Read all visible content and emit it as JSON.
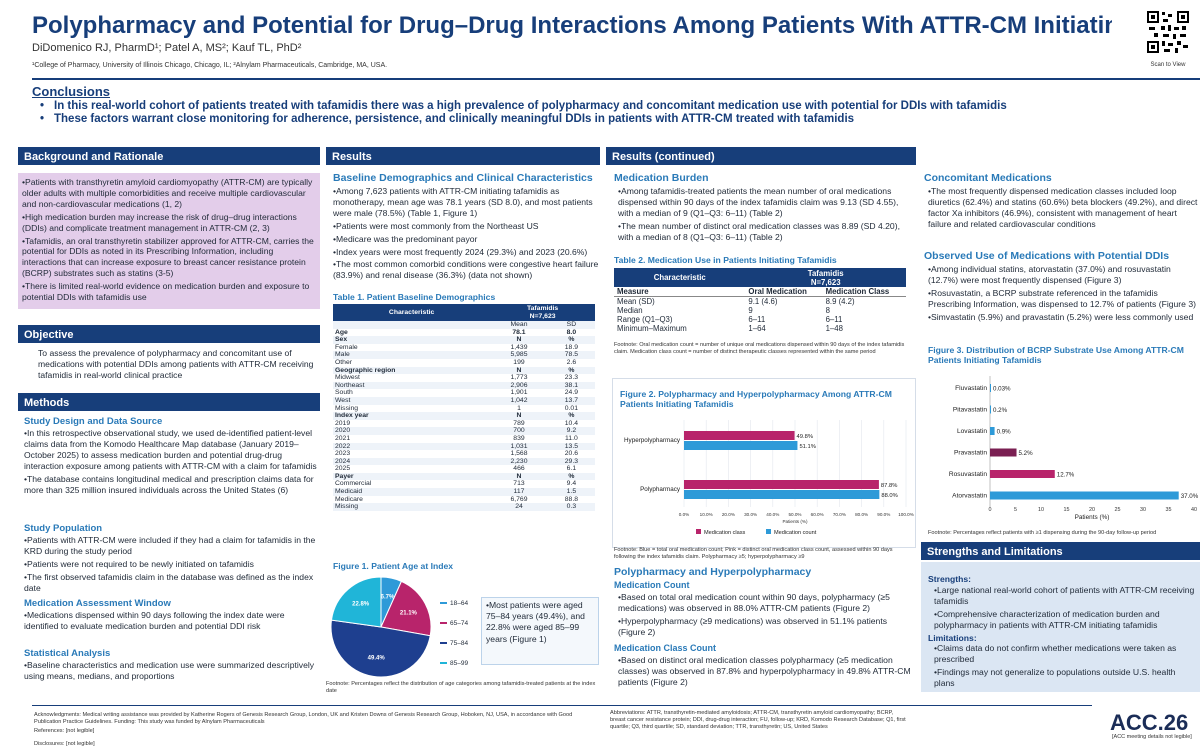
{
  "header": {
    "title": "Polypharmacy and Potential for Drug–Drug Interactions Among Patients With ATTR-CM Initiating Tafamidis",
    "authors": "DiDomenico RJ, PharmD¹; Patel A, MS²; Kauf TL, PhD²",
    "affiliations": "¹College of Pharmacy, University of Illinois Chicago, Chicago, IL; ²Alnylam Pharmaceuticals, Cambridge, MA, USA.",
    "qr_caption": "Scan to View"
  },
  "conclusions": {
    "title": "Conclusions",
    "items": [
      "In this real-world cohort of patients treated with tafamidis there was a high prevalence of polypharmacy and concomitant medication use with potential for DDIs with tafamidis",
      "These factors warrant close monitoring for adherence, persistence, and clinically meaningful DDIs in patients with ATTR-CM treated with tafamidis"
    ]
  },
  "background": {
    "title": "Background and Rationale",
    "items": [
      "•Patients with transthyretin amyloid cardiomyopathy (ATTR-CM) are typically older adults with multiple comorbidities and receive multiple cardiovascular and non-cardiovascular medications (1, 2)",
      "•High medication burden may increase the risk of drug–drug interactions (DDIs) and complicate treatment management in ATTR-CM (2, 3)",
      "•Tafamidis, an oral transthyretin stabilizer approved for ATTR-CM, carries the potential for DDIs as noted in its Prescribing Information, including interactions that can increase exposure to breast cancer resistance protein (BCRP) substrates such as statins (3-5)",
      "•There is limited real-world evidence on medication burden and exposure to potential DDIs with tafamidis use"
    ]
  },
  "objective": {
    "title": "Objective",
    "text": "To assess the prevalence of polypharmacy and concomitant use of medications with potential DDIs among patients with ATTR-CM receiving tafamidis in real-world clinical practice"
  },
  "methods": {
    "title": "Methods",
    "study_design_title": "Study Design and Data Source",
    "study_design": [
      "•In this retrospective observational study, we used de-identified patient-level claims data from the Komodo Healthcare Map database (January 2019–October 2025) to assess medication burden and potential drug-drug interaction exposure among patients with ATTR-CM with a claim for tafamidis",
      "•The database contains longitudinal medical and prescription claims data for more than 325 million insured individuals across the United States (6)"
    ],
    "population_title": "Study Population",
    "population": [
      "•Patients with ATTR-CM were included if they had a claim for tafamidis in the KRD during the study period",
      "•Patients were not required to be newly initiated on tafamidis",
      "•The first observed tafamidis claim in the database was defined as the index date"
    ],
    "window_title": "Medication Assessment Window",
    "window": [
      "•Medications dispensed within 90 days following the index date were identified to evaluate medication burden and potential DDI risk"
    ],
    "stats_title": "Statistical Analysis",
    "stats": [
      "•Baseline characteristics and medication use were summarized descriptively using means, medians, and proportions"
    ]
  },
  "results": {
    "title": "Results",
    "baseline_title": "Baseline Demographics and Clinical Characteristics",
    "baseline": [
      "•Among 7,623 patients with ATTR-CM initiating tafamidis as monotherapy, mean age was 78.1 years (SD 8.0), and most patients were male (78.5%) (Table 1, Figure 1)",
      "•Patients were most commonly from the Northeast US",
      "•Medicare was the predominant payor",
      "•Index years were most frequently 2024 (29.3%) and 2023 (20.6%)",
      "•The most common comorbid conditions were congestive heart failure (83.9%) and renal disease (36.3%) (data not shown)"
    ],
    "table1": {
      "caption": "Table 1. Patient Baseline Demographics",
      "col_char": "Characteristic",
      "col_group": "Tafamidis",
      "col_n": "N=7,623",
      "rows": [
        [
          "",
          "Mean",
          "SD",
          0
        ],
        [
          "Age",
          "78.1",
          "8.0",
          1
        ],
        [
          "Sex",
          "N",
          "%",
          1
        ],
        [
          "Female",
          "1,439",
          "18.9",
          0
        ],
        [
          "Male",
          "5,985",
          "78.5",
          0
        ],
        [
          "Other",
          "199",
          "2.6",
          0
        ],
        [
          "Geographic region",
          "N",
          "%",
          1
        ],
        [
          "Midwest",
          "1,773",
          "23.3",
          0
        ],
        [
          "Northeast",
          "2,906",
          "38.1",
          0
        ],
        [
          "South",
          "1,901",
          "24.9",
          0
        ],
        [
          "West",
          "1,042",
          "13.7",
          0
        ],
        [
          "Missing",
          "1",
          "0.01",
          0
        ],
        [
          "Index year",
          "N",
          "%",
          1
        ],
        [
          "2019",
          "789",
          "10.4",
          0
        ],
        [
          "2020",
          "700",
          "9.2",
          0
        ],
        [
          "2021",
          "839",
          "11.0",
          0
        ],
        [
          "2022",
          "1,031",
          "13.5",
          0
        ],
        [
          "2023",
          "1,568",
          "20.6",
          0
        ],
        [
          "2024",
          "2,230",
          "29.3",
          0
        ],
        [
          "2025",
          "466",
          "6.1",
          0
        ],
        [
          "Payer",
          "N",
          "%",
          1
        ],
        [
          "Commercial",
          "713",
          "9.4",
          0
        ],
        [
          "Medicaid",
          "117",
          "1.5",
          0
        ],
        [
          "Medicare",
          "6,769",
          "88.8",
          0
        ],
        [
          "Missing",
          "24",
          "0.3",
          0
        ]
      ]
    },
    "fig1": {
      "caption": "Figure 1. Patient Age at Index",
      "callout": "•Most patients were aged 75–84 years (49.4%), and 22.8% were aged 85–99 years (Figure 1)",
      "footnote": "Footnote: Percentages reflect the distribution of age categories among tafamidis-treated patients at the index date"
    }
  },
  "results2": {
    "title": "Results (continued)",
    "burden_title": "Medication Burden",
    "burden": [
      "•Among tafamidis-treated patients the mean number of oral medications dispensed within 90 days of the index tafamidis claim was 9.13 (SD 4.55), with a median of 9 (Q1–Q3: 6–11) (Table 2)",
      "•The mean number of distinct oral medication classes was 8.89 (SD 4.20), with a median of 8 (Q1–Q3: 6–11) (Table 2)"
    ],
    "table2": {
      "caption": "Table 2. Medication Use in Patients Initiating Tafamidis",
      "col_char": "Characteristic",
      "col_group": "Tafamidis",
      "col_n": "N=7,623",
      "col_measure": "Measure",
      "col_oral": "Oral Medication",
      "col_class": "Medication Class",
      "rows": [
        [
          "Mean (SD)",
          "9.1 (4.6)",
          "8.9 (4.2)"
        ],
        [
          "Median",
          "9",
          "8"
        ],
        [
          "Range (Q1–Q3)",
          "6–11",
          "6–11"
        ],
        [
          "Minimum–Maximum",
          "1–64",
          "1–48"
        ]
      ],
      "footnote": "Footnote: Oral medication count = number of unique oral medications dispensed within 90 days of the index tafamidis claim. Medication class count = number of distinct therapeutic classes represented within the same period"
    },
    "fig2": {
      "caption": "Figure 2. Polypharmacy and Hyperpolypharmacy Among ATTR-CM Patients Initiating Tafamidis",
      "footnote": "Footnote: Blue = total oral medication count; Pink = distinct oral medication class count, assessed within 90 days following the index tafamidis claim. Polypharmacy ≥5; hyperpolypharmacy ≥9"
    },
    "poly_title": "Polypharmacy and Hyperpolypharmacy",
    "count_title": "Medication Count",
    "count": [
      "•Based on total oral medication count within 90 days, polypharmacy (≥5 medications) was observed in 88.0% ATTR-CM patients (Figure 2)",
      "•Hyperpolypharmacy (≥9 medications) was observed in 51.1% patients (Figure 2)"
    ],
    "class_title": "Medication Class Count",
    "class": [
      "•Based on distinct oral medication classes polypharmacy (≥5 medication classes) was observed in 87.8% and hyperpolypharmacy in 49.8% ATTR-CM patients (Figure 2)"
    ]
  },
  "results3": {
    "concomitant_title": "Concomitant Medications",
    "concomitant": [
      "•The most frequently dispensed medication classes included loop diuretics (62.4%) and statins (60.6%) beta blockers (49.2%), and direct factor Xa inhibitors (46.9%), consistent with management of heart failure and related cardiovascular conditions"
    ],
    "ddi_title": "Observed Use of Medications with Potential DDIs",
    "ddi": [
      "•Among individual statins, atorvastatin (37.0%) and rosuvastatin (12.7%) were most frequently dispensed (Figure 3)",
      "•Rosuvastatin, a BCRP substrate referenced in the tafamidis Prescribing Information, was dispensed to 12.7% of patients (Figure 3)",
      "•Simvastatin (5.9%) and pravastatin (5.2%) were less commonly used"
    ],
    "fig3": {
      "caption": "Figure 3. Distribution of BCRP Substrate Use Among ATTR-CM Patients Initiating Tafamidis",
      "footnote": "Footnote: Percentages reflect patients with ≥1 dispensing during the 90-day follow-up period"
    },
    "strengths_title": "Strengths and Limitations",
    "strengths_label": "Strengths:",
    "strengths": [
      "•Large national real-world cohort of patients with ATTR-CM receiving tafamidis",
      "•Comprehensive characterization of medication burden and polypharmacy in patients with ATTR-CM initiating tafamidis"
    ],
    "limitations_label": "Limitations:",
    "limitations": [
      "•Claims data do not confirm whether medications were taken as prescribed",
      "•Findings may not generalize to populations outside U.S. health plans"
    ]
  },
  "footer": {
    "ack": "Acknowledgments: Medical writing assistance was provided by Katherine Rogers of Genesis Research Group, London, UK and Kristen Downs of Genesis Research Group, Hoboken, NJ, USA, in accordance with Good Publication Practice Guidelines. Funding: This study was funded by Alnylam Pharmaceuticals",
    "refs": "References: [not legible]",
    "disclosures": "Disclosures: [not legible]",
    "abbrev": "Abbreviations: ATTR, transthyretin-mediated amyloidosis; ATTR-CM, transthyretin amyloid cardiomyopathy; BCRP, breast cancer resistance protein; DDI, drug-drug interaction; FU, follow-up; KRD, Komodo Research Database; Q1, first quartile; Q3, third quartile; SD, standard deviation; TTR, transthyretin; US, United States",
    "acc_logo": "ACC.26",
    "acc_sub": "[ACC meeting details not legible]"
  },
  "colors": {
    "navy": "#173e7a",
    "teal": "#2a7ab8",
    "pink": "#b8246b",
    "blue": "#2e9ad8",
    "navy_pie": "#1e3f8f",
    "lightblue": "#7ab6e0"
  },
  "chart_data": [
    {
      "type": "pie",
      "title": "Figure 1. Patient Age at Index",
      "labels": [
        "18–64",
        "65–74",
        "75–84",
        "85–99"
      ],
      "values": [
        6.7,
        21.1,
        49.4,
        22.8
      ],
      "colors": [
        "#2e9ad8",
        "#b8246b",
        "#1e3f8f",
        "#20b5d8"
      ],
      "data_labels": [
        "6.7%",
        "21.1%",
        "49.4%",
        "22.8%"
      ]
    },
    {
      "type": "bar",
      "orientation": "horizontal",
      "title": "Figure 2. Polypharmacy and Hyperpolypharmacy Among ATTR-CM Patients Initiating Tafamidis",
      "categories": [
        "Hyperpolypharmacy",
        "Polypharmacy"
      ],
      "series": [
        {
          "name": "Medication class",
          "values": [
            49.8,
            87.8
          ],
          "color": "#b8246b"
        },
        {
          "name": "Medication count",
          "values": [
            51.1,
            88.0
          ],
          "color": "#2e9ad8"
        }
      ],
      "xlim": [
        0,
        100
      ],
      "xticks": [
        "0.0%",
        "10.0%",
        "20.0%",
        "30.0%",
        "40.0%",
        "50.0%",
        "60.0%",
        "70.0%",
        "80.0%",
        "90.0%",
        "100.0%"
      ],
      "xlabel": "Patients (%)"
    },
    {
      "type": "bar",
      "orientation": "horizontal",
      "title": "Figure 3. Distribution of BCRP Substrate Use Among ATTR-CM Patients Initiating Tafamidis",
      "categories": [
        "Fluvastatin",
        "Pitavastatin",
        "Lovastatin",
        "Pravastatin",
        "Rosuvastatin",
        "Atorvastatin"
      ],
      "values": [
        0.03,
        0.2,
        0.9,
        5.2,
        12.7,
        37.0
      ],
      "labels": [
        "0.03%",
        "0.2%",
        "0.9%",
        "5.2%",
        "12.7%",
        "37.0%"
      ],
      "colors": [
        "#2e9ad8",
        "#2e9ad8",
        "#2e9ad8",
        "#7a1f52",
        "#b8246b",
        "#2e9ad8"
      ],
      "xlim": [
        0,
        40
      ],
      "xticks": [
        "0",
        "5",
        "10",
        "15",
        "20",
        "25",
        "30",
        "35",
        "40"
      ],
      "xlabel": "Patients (%)"
    }
  ]
}
